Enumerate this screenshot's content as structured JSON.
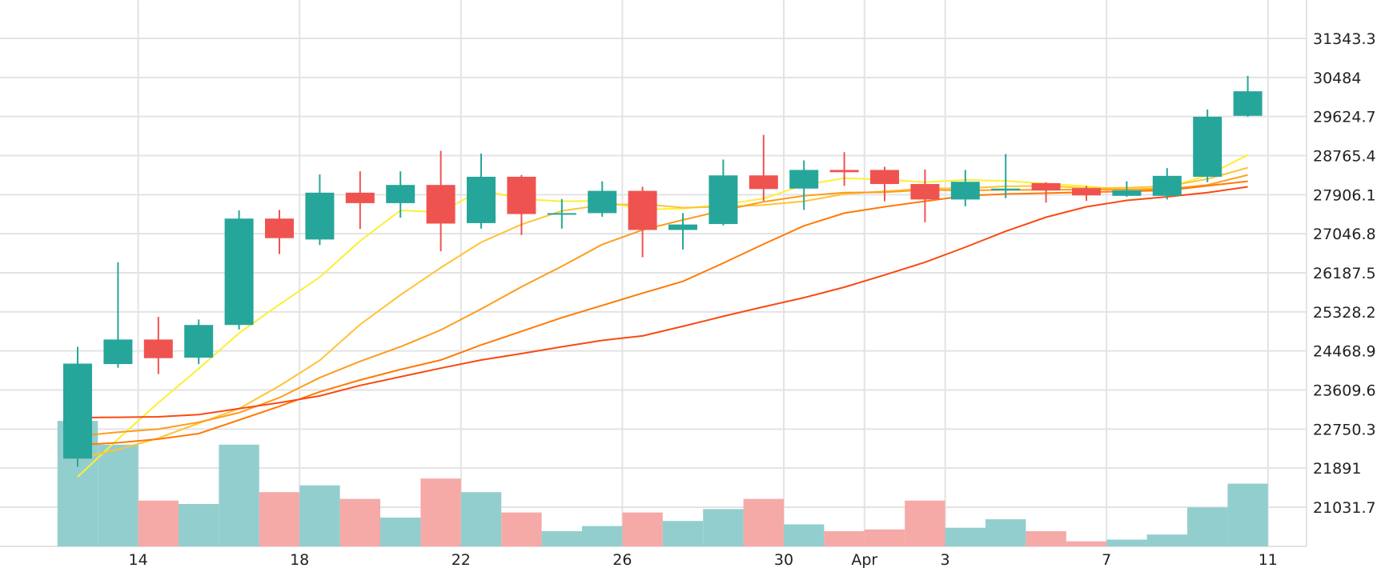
{
  "chart_data": {
    "type": "candlestick",
    "title": "",
    "xlabel": "",
    "ylabel": "",
    "ylim": [
      20172,
      32202
    ],
    "y_ticks": [
      "31343.3",
      "30484",
      "29624.7",
      "28765.4",
      "27906.1",
      "27046.8",
      "26187.5",
      "25328.2",
      "24468.9",
      "23609.6",
      "22750.3",
      "21891",
      "21031.7"
    ],
    "x_ticks": [
      {
        "label": "14",
        "index": 1.5
      },
      {
        "label": "18",
        "index": 5.5
      },
      {
        "label": "22",
        "index": 9.5
      },
      {
        "label": "26",
        "index": 13.5
      },
      {
        "label": "30",
        "index": 17.5
      },
      {
        "label": "Apr",
        "index": 19.5
      },
      {
        "label": "3",
        "index": 21.5
      },
      {
        "label": "7",
        "index": 25.5
      },
      {
        "label": "11",
        "index": 29.5
      }
    ],
    "colors": {
      "up": "#26a69a",
      "down": "#ef5350",
      "up_volume": "#93cece",
      "down_volume": "#f5aaa8",
      "grid": "#e3e3e3"
    },
    "candles": [
      {
        "o": 22100,
        "h": 24560,
        "l": 21920,
        "c": 24190
      },
      {
        "o": 24180,
        "h": 26420,
        "l": 24100,
        "c": 24720
      },
      {
        "o": 24720,
        "h": 25220,
        "l": 23960,
        "c": 24310
      },
      {
        "o": 24320,
        "h": 25160,
        "l": 24180,
        "c": 25040
      },
      {
        "o": 25040,
        "h": 27560,
        "l": 24940,
        "c": 27380
      },
      {
        "o": 27380,
        "h": 27570,
        "l": 26600,
        "c": 26950
      },
      {
        "o": 26920,
        "h": 28350,
        "l": 26800,
        "c": 27950
      },
      {
        "o": 27950,
        "h": 28420,
        "l": 27150,
        "c": 27720
      },
      {
        "o": 27720,
        "h": 28420,
        "l": 27400,
        "c": 28120
      },
      {
        "o": 28120,
        "h": 28870,
        "l": 26660,
        "c": 27270
      },
      {
        "o": 27280,
        "h": 28810,
        "l": 27160,
        "c": 28300
      },
      {
        "o": 28300,
        "h": 28340,
        "l": 27020,
        "c": 27480
      },
      {
        "o": 27480,
        "h": 27810,
        "l": 27160,
        "c": 27500
      },
      {
        "o": 27500,
        "h": 28200,
        "l": 27420,
        "c": 27990
      },
      {
        "o": 27990,
        "h": 28080,
        "l": 26530,
        "c": 27130
      },
      {
        "o": 27130,
        "h": 27500,
        "l": 26700,
        "c": 27250
      },
      {
        "o": 27260,
        "h": 28680,
        "l": 27230,
        "c": 28330
      },
      {
        "o": 28330,
        "h": 29220,
        "l": 27770,
        "c": 28030
      },
      {
        "o": 28040,
        "h": 28660,
        "l": 27570,
        "c": 28450
      },
      {
        "o": 28450,
        "h": 28840,
        "l": 28100,
        "c": 28400
      },
      {
        "o": 28450,
        "h": 28520,
        "l": 27760,
        "c": 28140
      },
      {
        "o": 28140,
        "h": 28460,
        "l": 27300,
        "c": 27800
      },
      {
        "o": 27800,
        "h": 28450,
        "l": 27650,
        "c": 28190
      },
      {
        "o": 28000,
        "h": 28800,
        "l": 27830,
        "c": 28040
      },
      {
        "o": 28160,
        "h": 28180,
        "l": 27730,
        "c": 28000
      },
      {
        "o": 28050,
        "h": 28100,
        "l": 27770,
        "c": 27890
      },
      {
        "o": 27880,
        "h": 28200,
        "l": 27860,
        "c": 28000
      },
      {
        "o": 27880,
        "h": 28490,
        "l": 27800,
        "c": 28320
      },
      {
        "o": 28300,
        "h": 29780,
        "l": 28180,
        "c": 29620
      },
      {
        "o": 29640,
        "h": 30520,
        "l": 29620,
        "c": 30180
      }
    ],
    "volume": [
      74,
      60,
      27,
      25,
      60,
      32,
      36,
      28,
      17,
      40,
      32,
      20,
      9,
      12,
      20,
      15,
      22,
      28,
      13,
      9,
      10,
      27,
      11,
      16,
      9,
      3,
      4,
      7,
      23,
      37
    ],
    "ma_series": [
      {
        "color": "#ffee33",
        "values": [
          21700,
          22530,
          23330,
          24080,
          24860,
          25490,
          26090,
          26890,
          27560,
          27520,
          28010,
          27810,
          27760,
          27770,
          27580,
          27600,
          27690,
          27820,
          28120,
          28270,
          28240,
          28180,
          28230,
          28210,
          28150,
          28090,
          28010,
          28060,
          28330,
          28780
        ]
      },
      {
        "color": "#fdc435",
        "values": [
          22100,
          22300,
          22550,
          22880,
          23200,
          23700,
          24260,
          25050,
          25700,
          26300,
          26860,
          27250,
          27550,
          27680,
          27700,
          27620,
          27640,
          27680,
          27760,
          27920,
          27980,
          28040,
          28050,
          28090,
          28100,
          28050,
          28060,
          28090,
          28250,
          28500
        ]
      },
      {
        "color": "#ff9c1c",
        "values": [
          22600,
          22680,
          22750,
          22900,
          23110,
          23440,
          23880,
          24240,
          24560,
          24930,
          25390,
          25880,
          26330,
          26810,
          27130,
          27350,
          27560,
          27750,
          27880,
          27950,
          27960,
          28010,
          28000,
          28010,
          28010,
          28020,
          28020,
          28030,
          28120,
          28340
        ]
      },
      {
        "color": "#ff7a06",
        "values": [
          22400,
          22450,
          22530,
          22650,
          22950,
          23250,
          23570,
          23830,
          24060,
          24270,
          24600,
          24900,
          25200,
          25470,
          25740,
          26000,
          26400,
          26820,
          27220,
          27500,
          27640,
          27760,
          27880,
          27920,
          27940,
          27960,
          27980,
          28000,
          28100,
          28200
        ]
      },
      {
        "color": "#f94a11",
        "values": [
          23000,
          23010,
          23020,
          23070,
          23200,
          23330,
          23480,
          23710,
          23900,
          24090,
          24270,
          24410,
          24560,
          24700,
          24800,
          25010,
          25230,
          25440,
          25640,
          25870,
          26140,
          26420,
          26750,
          27100,
          27410,
          27640,
          27780,
          27860,
          27950,
          28080
        ]
      }
    ]
  }
}
